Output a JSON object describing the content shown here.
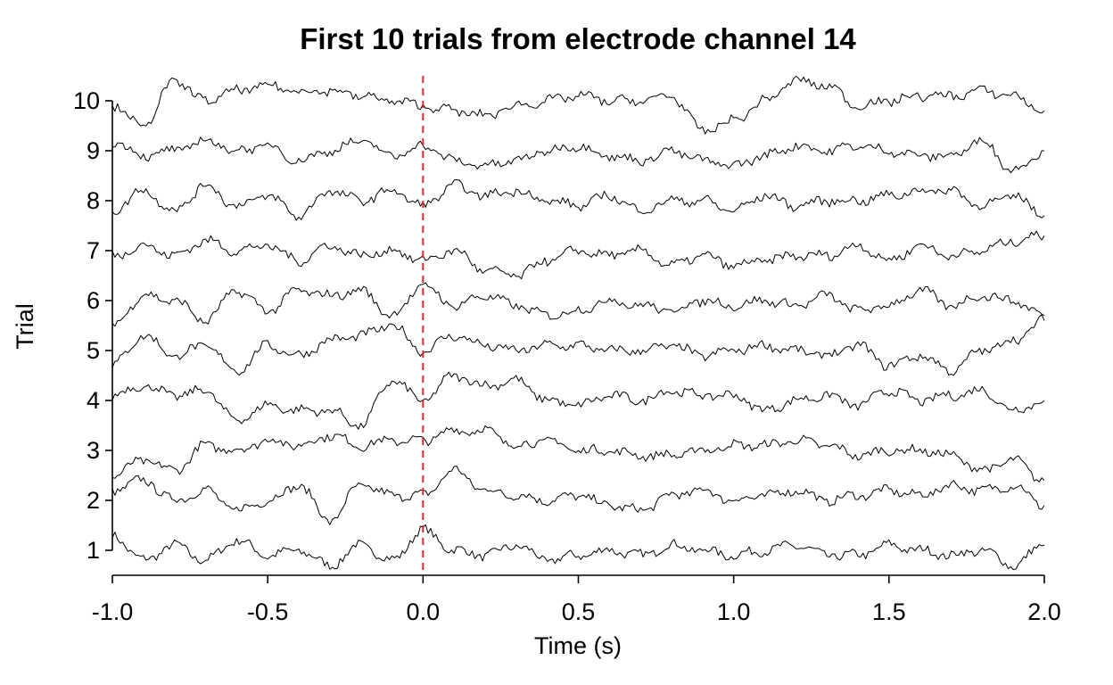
{
  "chart_data": {
    "type": "line",
    "title": "First 10 trials from electrode channel 14",
    "xlabel": "Time (s)",
    "ylabel": "Trial",
    "xlim": [
      -1.0,
      2.0
    ],
    "ylim": [
      0.5,
      10.5
    ],
    "x_ticks": [
      "-1.0",
      "-0.5",
      "0.0",
      "0.5",
      "1.0",
      "1.5",
      "2.0"
    ],
    "x_tick_values": [
      -1.0,
      -0.5,
      0.0,
      0.5,
      1.0,
      1.5,
      2.0
    ],
    "y_ticks": [
      "1",
      "2",
      "3",
      "4",
      "5",
      "6",
      "7",
      "8",
      "9",
      "10"
    ],
    "y_tick_values": [
      1,
      2,
      3,
      4,
      5,
      6,
      7,
      8,
      9,
      10
    ],
    "grid": false,
    "event_marker": {
      "x": 0.0,
      "color": "#e8262b",
      "style": "dashed"
    },
    "trace_color": "#000000",
    "series": [
      {
        "trial": 1,
        "x": [
          -1.0,
          -0.9,
          -0.8,
          -0.7,
          -0.6,
          -0.5,
          -0.4,
          -0.3,
          -0.2,
          -0.1,
          0.0,
          0.1,
          0.2,
          0.3,
          0.4,
          0.5,
          0.6,
          0.7,
          0.8,
          0.9,
          1.0,
          1.1,
          1.2,
          1.3,
          1.4,
          1.5,
          1.6,
          1.7,
          1.8,
          1.9,
          2.0
        ],
        "values": [
          1.3,
          0.8,
          1.1,
          0.8,
          1.2,
          0.9,
          1.0,
          0.7,
          1.1,
          0.8,
          1.4,
          1.0,
          0.9,
          1.1,
          0.8,
          0.9,
          1.0,
          0.9,
          1.1,
          1.0,
          0.9,
          1.0,
          1.1,
          0.9,
          0.9,
          1.1,
          1.0,
          0.9,
          1.0,
          0.7,
          1.1
        ]
      },
      {
        "trial": 2,
        "x": [
          -1.0,
          -0.9,
          -0.8,
          -0.7,
          -0.6,
          -0.5,
          -0.4,
          -0.3,
          -0.2,
          -0.1,
          0.0,
          0.1,
          0.2,
          0.3,
          0.4,
          0.5,
          0.6,
          0.7,
          0.8,
          0.9,
          1.0,
          1.1,
          1.2,
          1.3,
          1.4,
          1.5,
          1.6,
          1.7,
          1.8,
          1.9,
          2.0
        ],
        "values": [
          2.2,
          2.4,
          2.0,
          2.2,
          1.8,
          2.0,
          2.3,
          1.6,
          2.3,
          2.1,
          2.1,
          2.6,
          2.2,
          2.1,
          2.0,
          2.1,
          1.9,
          1.8,
          2.1,
          2.2,
          2.0,
          2.1,
          2.2,
          2.0,
          2.1,
          2.2,
          2.1,
          2.3,
          2.2,
          2.3,
          1.9
        ]
      },
      {
        "trial": 3,
        "x": [
          -1.0,
          -0.9,
          -0.8,
          -0.7,
          -0.6,
          -0.5,
          -0.4,
          -0.3,
          -0.2,
          -0.1,
          0.0,
          0.1,
          0.2,
          0.3,
          0.4,
          0.5,
          0.6,
          0.7,
          0.8,
          0.9,
          1.0,
          1.1,
          1.2,
          1.3,
          1.4,
          1.5,
          1.6,
          1.7,
          1.8,
          1.9,
          2.0
        ],
        "values": [
          2.5,
          2.8,
          2.6,
          3.1,
          3.0,
          3.2,
          3.1,
          3.3,
          3.1,
          3.2,
          3.2,
          3.4,
          3.4,
          3.1,
          3.2,
          3.0,
          3.0,
          2.9,
          2.9,
          3.0,
          3.1,
          3.1,
          3.2,
          3.1,
          2.9,
          3.0,
          3.0,
          2.9,
          2.6,
          2.8,
          2.4
        ]
      },
      {
        "trial": 4,
        "x": [
          -1.0,
          -0.9,
          -0.8,
          -0.7,
          -0.6,
          -0.5,
          -0.4,
          -0.3,
          -0.2,
          -0.1,
          0.0,
          0.1,
          0.2,
          0.3,
          0.4,
          0.5,
          0.6,
          0.7,
          0.8,
          0.9,
          1.0,
          1.1,
          1.2,
          1.3,
          1.4,
          1.5,
          1.6,
          1.7,
          1.8,
          1.9,
          2.0
        ],
        "values": [
          4.1,
          4.3,
          4.1,
          4.2,
          3.6,
          3.9,
          3.8,
          3.8,
          3.5,
          4.4,
          4.0,
          4.5,
          4.3,
          4.4,
          4.0,
          3.9,
          4.1,
          4.0,
          4.2,
          4.1,
          4.1,
          3.8,
          4.0,
          4.1,
          3.9,
          4.2,
          4.0,
          4.1,
          4.2,
          3.8,
          4.0
        ]
      },
      {
        "trial": 5,
        "x": [
          -1.0,
          -0.9,
          -0.8,
          -0.7,
          -0.6,
          -0.5,
          -0.4,
          -0.3,
          -0.2,
          -0.1,
          0.0,
          0.1,
          0.2,
          0.3,
          0.4,
          0.5,
          0.6,
          0.7,
          0.8,
          0.9,
          1.0,
          1.1,
          1.2,
          1.3,
          1.4,
          1.5,
          1.6,
          1.7,
          1.8,
          1.9,
          2.0
        ],
        "values": [
          4.7,
          5.3,
          4.9,
          5.1,
          4.6,
          5.1,
          4.9,
          5.2,
          5.3,
          5.5,
          5.0,
          5.3,
          5.1,
          5.0,
          5.1,
          5.1,
          5.0,
          5.0,
          5.1,
          4.9,
          5.0,
          5.1,
          5.0,
          4.9,
          5.1,
          4.7,
          4.9,
          4.6,
          5.0,
          5.2,
          5.6
        ]
      },
      {
        "trial": 6,
        "x": [
          -1.0,
          -0.9,
          -0.8,
          -0.7,
          -0.6,
          -0.5,
          -0.4,
          -0.3,
          -0.2,
          -0.1,
          0.0,
          0.1,
          0.2,
          0.3,
          0.4,
          0.5,
          0.6,
          0.7,
          0.8,
          0.9,
          1.0,
          1.1,
          1.2,
          1.3,
          1.4,
          1.5,
          1.6,
          1.7,
          1.8,
          1.9,
          2.0
        ],
        "values": [
          5.5,
          6.1,
          6.0,
          5.6,
          6.2,
          5.8,
          6.2,
          6.1,
          6.2,
          5.7,
          6.3,
          5.9,
          6.1,
          5.9,
          5.7,
          5.8,
          6.0,
          5.9,
          5.8,
          6.0,
          5.9,
          6.0,
          5.9,
          6.1,
          5.8,
          5.9,
          6.2,
          5.9,
          6.1,
          6.0,
          5.7
        ]
      },
      {
        "trial": 7,
        "x": [
          -1.0,
          -0.9,
          -0.8,
          -0.7,
          -0.6,
          -0.5,
          -0.4,
          -0.3,
          -0.2,
          -0.1,
          0.0,
          0.1,
          0.2,
          0.3,
          0.4,
          0.5,
          0.6,
          0.7,
          0.8,
          0.9,
          1.0,
          1.1,
          1.2,
          1.3,
          1.4,
          1.5,
          1.6,
          1.7,
          1.8,
          1.9,
          2.0
        ],
        "values": [
          6.9,
          7.1,
          6.9,
          7.2,
          7.0,
          7.1,
          6.8,
          7.1,
          6.9,
          7.0,
          6.8,
          7.0,
          6.6,
          6.5,
          6.8,
          7.0,
          6.9,
          7.0,
          6.7,
          6.9,
          6.7,
          6.8,
          6.9,
          6.9,
          7.1,
          6.8,
          7.1,
          6.9,
          7.0,
          7.2,
          7.3
        ]
      },
      {
        "trial": 8,
        "x": [
          -1.0,
          -0.9,
          -0.8,
          -0.7,
          -0.6,
          -0.5,
          -0.4,
          -0.3,
          -0.2,
          -0.1,
          0.0,
          0.1,
          0.2,
          0.3,
          0.4,
          0.5,
          0.6,
          0.7,
          0.8,
          0.9,
          1.0,
          1.1,
          1.2,
          1.3,
          1.4,
          1.5,
          1.6,
          1.7,
          1.8,
          1.9,
          2.0
        ],
        "values": [
          7.8,
          8.2,
          7.8,
          8.3,
          7.9,
          8.1,
          7.7,
          8.2,
          8.0,
          8.2,
          7.9,
          8.3,
          8.1,
          8.2,
          8.0,
          7.9,
          8.1,
          7.8,
          8.0,
          8.0,
          7.8,
          8.1,
          7.9,
          8.0,
          8.0,
          8.1,
          8.2,
          8.2,
          7.9,
          8.1,
          7.7
        ]
      },
      {
        "trial": 9,
        "x": [
          -1.0,
          -0.9,
          -0.8,
          -0.7,
          -0.6,
          -0.5,
          -0.4,
          -0.3,
          -0.2,
          -0.1,
          0.0,
          0.1,
          0.2,
          0.3,
          0.4,
          0.5,
          0.6,
          0.7,
          0.8,
          0.9,
          1.0,
          1.1,
          1.2,
          1.3,
          1.4,
          1.5,
          1.6,
          1.7,
          1.8,
          1.9,
          2.0
        ],
        "values": [
          9.2,
          8.9,
          9.0,
          9.2,
          9.0,
          9.1,
          8.8,
          9.0,
          9.2,
          8.9,
          9.1,
          8.8,
          8.7,
          8.8,
          9.0,
          9.1,
          8.9,
          8.8,
          9.0,
          8.8,
          8.7,
          8.9,
          9.1,
          9.0,
          9.1,
          9.0,
          8.9,
          8.9,
          9.2,
          8.6,
          9.0
        ]
      },
      {
        "trial": 10,
        "x": [
          -1.0,
          -0.9,
          -0.8,
          -0.7,
          -0.6,
          -0.5,
          -0.4,
          -0.3,
          -0.2,
          -0.1,
          0.0,
          0.1,
          0.2,
          0.3,
          0.4,
          0.5,
          0.6,
          0.7,
          0.8,
          0.9,
          1.0,
          1.1,
          1.2,
          1.3,
          1.4,
          1.5,
          1.6,
          1.7,
          1.8,
          1.9,
          2.0
        ],
        "values": [
          9.9,
          9.5,
          10.4,
          10.0,
          10.2,
          10.3,
          10.2,
          10.2,
          10.1,
          10.0,
          9.9,
          9.8,
          9.7,
          9.9,
          10.0,
          10.1,
          10.0,
          10.0,
          10.1,
          9.4,
          9.6,
          10.0,
          10.4,
          10.3,
          9.9,
          10.0,
          10.1,
          10.1,
          10.2,
          10.1,
          9.8
        ]
      }
    ]
  }
}
